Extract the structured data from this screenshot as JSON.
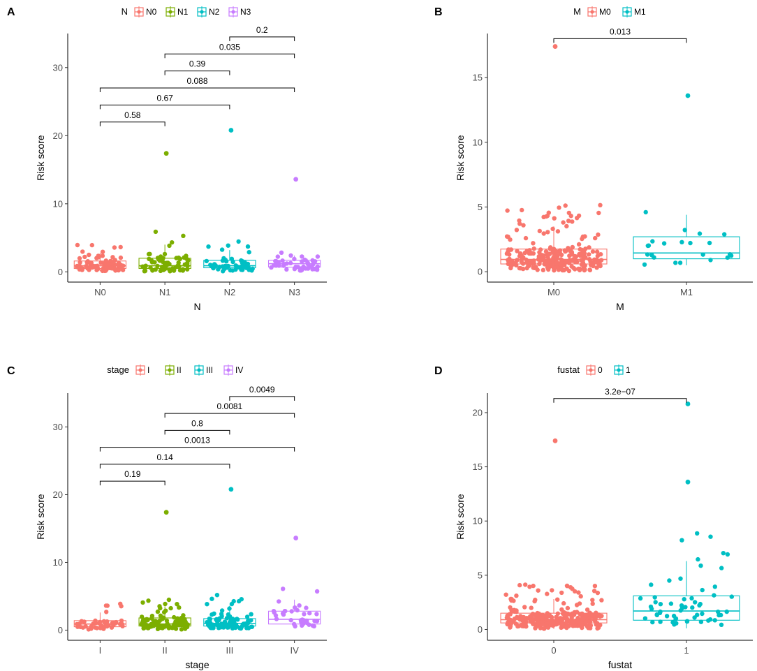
{
  "chart_data": [
    {
      "type": "boxplot",
      "panel_label": "A",
      "xlabel": "N",
      "ylabel": "Risk score",
      "legend_title": "N",
      "legend_position": "top",
      "categories": [
        "N0",
        "N1",
        "N2",
        "N3"
      ],
      "colors": [
        "#F8766D",
        "#7CAE00",
        "#00BFC4",
        "#C77CFF"
      ],
      "ylim": [
        -1.5,
        35
      ],
      "yticks": [
        0,
        10,
        20,
        30
      ],
      "boxes": [
        {
          "q1": 0.5,
          "median": 0.9,
          "q3": 1.6,
          "whisker_low": 0.1,
          "whisker_high": 2.8
        },
        {
          "q1": 0.5,
          "median": 0.9,
          "q3": 2.0,
          "whisker_low": 0.1,
          "whisker_high": 4.0
        },
        {
          "q1": 0.6,
          "median": 0.9,
          "q3": 1.7,
          "whisker_low": 0.1,
          "whisker_high": 3.2
        },
        {
          "q1": 0.7,
          "median": 1.2,
          "q3": 1.7,
          "whisker_low": 0.2,
          "whisker_high": 2.4
        }
      ],
      "outliers": [
        {
          "group": 1,
          "y": 17.4
        },
        {
          "group": 2,
          "y": 20.8
        },
        {
          "group": 3,
          "y": 13.6
        }
      ],
      "point_counts": [
        85,
        70,
        55,
        45
      ],
      "comparisons": [
        {
          "from": 0,
          "to": 1,
          "y": 22,
          "label": "0.58"
        },
        {
          "from": 0,
          "to": 2,
          "y": 24.5,
          "label": "0.67"
        },
        {
          "from": 0,
          "to": 3,
          "y": 27,
          "label": "0.088"
        },
        {
          "from": 1,
          "to": 2,
          "y": 29.5,
          "label": "0.39"
        },
        {
          "from": 1,
          "to": 3,
          "y": 32,
          "label": "0.035"
        },
        {
          "from": 2,
          "to": 3,
          "y": 34.5,
          "label": "0.2"
        }
      ]
    },
    {
      "type": "boxplot",
      "panel_label": "B",
      "xlabel": "M",
      "ylabel": "Risk score",
      "legend_title": "M",
      "legend_position": "top",
      "categories": [
        "M0",
        "M1"
      ],
      "colors": [
        "#F8766D",
        "#00BFC4"
      ],
      "ylim": [
        -0.8,
        18.4
      ],
      "yticks": [
        0,
        5,
        10,
        15
      ],
      "boxes": [
        {
          "q1": 0.6,
          "median": 0.95,
          "q3": 1.75,
          "whisker_low": 0.05,
          "whisker_high": 3.5
        },
        {
          "q1": 1.0,
          "median": 1.45,
          "q3": 2.7,
          "whisker_low": 0.5,
          "whisker_high": 4.4
        }
      ],
      "outliers": [
        {
          "group": 0,
          "y": 17.4
        },
        {
          "group": 1,
          "y": 13.6
        }
      ],
      "point_counts": [
        260,
        22
      ],
      "comparisons": [
        {
          "from": 0,
          "to": 1,
          "y": 18.0,
          "label": "0.013"
        }
      ]
    },
    {
      "type": "boxplot",
      "panel_label": "C",
      "xlabel": "stage",
      "ylabel": "Risk score",
      "legend_title": "stage",
      "legend_position": "top",
      "categories": [
        "I",
        "II",
        "III",
        "IV"
      ],
      "colors": [
        "#F8766D",
        "#7CAE00",
        "#00BFC4",
        "#C77CFF"
      ],
      "ylim": [
        -1.5,
        35
      ],
      "yticks": [
        0,
        10,
        20,
        30
      ],
      "boxes": [
        {
          "q1": 0.5,
          "median": 0.9,
          "q3": 1.4,
          "whisker_low": 0.1,
          "whisker_high": 2.6
        },
        {
          "q1": 0.6,
          "median": 0.9,
          "q3": 1.8,
          "whisker_low": 0.1,
          "whisker_high": 3.5
        },
        {
          "q1": 0.6,
          "median": 1.0,
          "q3": 1.7,
          "whisker_low": 0.1,
          "whisker_high": 3.6
        },
        {
          "q1": 0.9,
          "median": 1.6,
          "q3": 2.8,
          "whisker_low": 0.3,
          "whisker_high": 4.5
        }
      ],
      "outliers": [
        {
          "group": 1,
          "y": 17.4
        },
        {
          "group": 2,
          "y": 20.8
        },
        {
          "group": 3,
          "y": 13.6
        }
      ],
      "point_counts": [
        45,
        110,
        95,
        35
      ],
      "comparisons": [
        {
          "from": 0,
          "to": 1,
          "y": 22,
          "label": "0.19"
        },
        {
          "from": 0,
          "to": 2,
          "y": 24.5,
          "label": "0.14"
        },
        {
          "from": 0,
          "to": 3,
          "y": 27,
          "label": "0.0013"
        },
        {
          "from": 1,
          "to": 2,
          "y": 29.5,
          "label": "0.8"
        },
        {
          "from": 1,
          "to": 3,
          "y": 32,
          "label": "0.0081"
        },
        {
          "from": 2,
          "to": 3,
          "y": 34.5,
          "label": "0.0049"
        }
      ]
    },
    {
      "type": "boxplot",
      "panel_label": "D",
      "xlabel": "fustat",
      "ylabel": "Risk score",
      "legend_title": "fustat",
      "legend_position": "top",
      "categories": [
        "0",
        "1"
      ],
      "colors": [
        "#F8766D",
        "#00BFC4"
      ],
      "ylim": [
        -1,
        21.8
      ],
      "yticks": [
        0,
        5,
        10,
        15,
        20
      ],
      "boxes": [
        {
          "q1": 0.6,
          "median": 0.9,
          "q3": 1.5,
          "whisker_low": 0.05,
          "whisker_high": 2.8
        },
        {
          "q1": 0.85,
          "median": 1.7,
          "q3": 3.1,
          "whisker_low": 0.1,
          "whisker_high": 6.3
        }
      ],
      "outliers": [
        {
          "group": 0,
          "y": 17.4
        },
        {
          "group": 1,
          "y": 20.8
        },
        {
          "group": 1,
          "y": 13.6
        }
      ],
      "point_counts": [
        300,
        60
      ],
      "comparisons": [
        {
          "from": 0,
          "to": 1,
          "y": 21.3,
          "label": "3.2e−07"
        }
      ]
    }
  ]
}
